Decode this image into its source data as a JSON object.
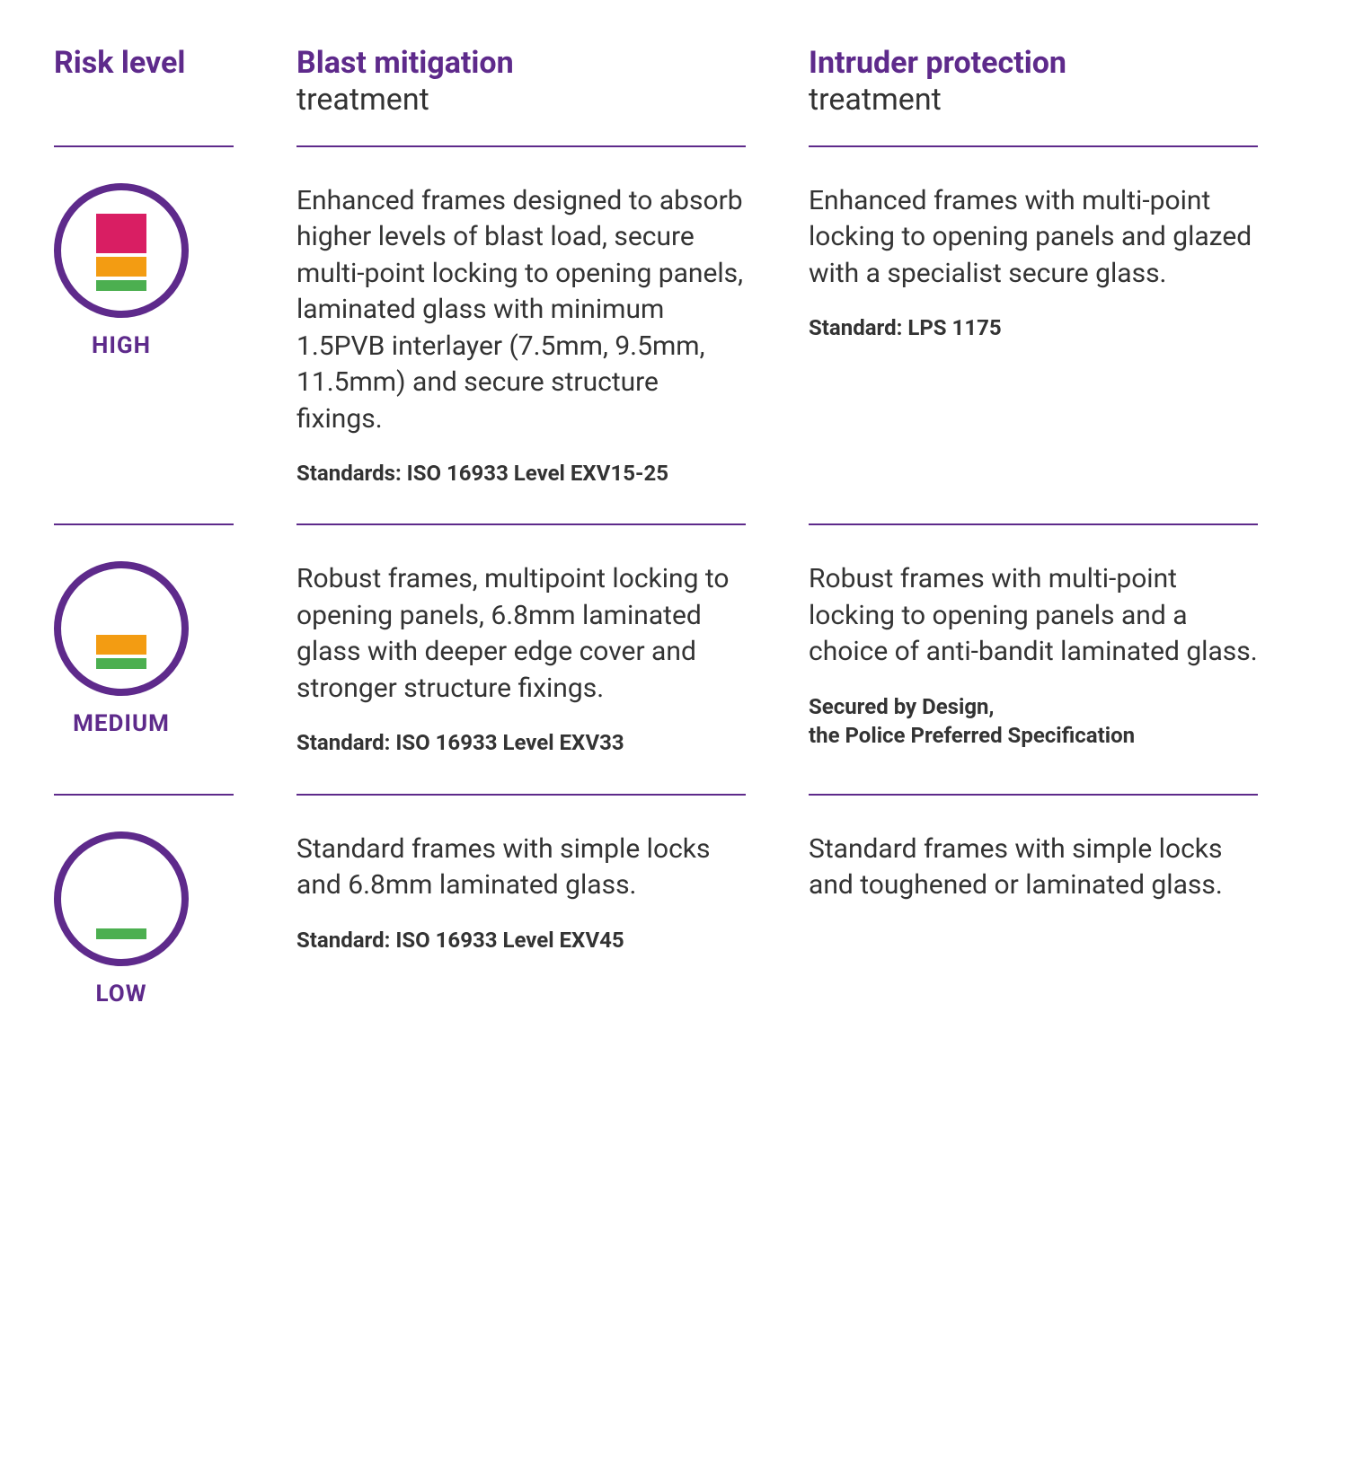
{
  "colors": {
    "purple": "#5e2a8b",
    "text": "#333333",
    "iconBorder": "#5e2a8b",
    "red": "#d91e63",
    "orange": "#f39c12",
    "green": "#4caf50"
  },
  "headers": {
    "risk": "Risk level",
    "blast_title": "Blast mitigation",
    "blast_sub": "treatment",
    "intruder_title": "Intruder protection",
    "intruder_sub": "treatment"
  },
  "rows": [
    {
      "level": "HIGH",
      "bars": [
        "red",
        "orange",
        "green"
      ],
      "blast_text": "Enhanced frames designed to absorb higher levels of blast load, secure multi-point locking to opening panels, laminated glass with minimum 1.5PVB interlayer (7.5mm, 9.5mm, 11.5mm) and secure structure fixings.",
      "blast_standard": "Standards: ISO 16933 Level EXV15-25",
      "intruder_text": "Enhanced frames with multi-point locking to opening panels and glazed with a specialist secure glass.",
      "intruder_standard": "Standard: LPS 1175"
    },
    {
      "level": "MEDIUM",
      "bars": [
        "orange",
        "green"
      ],
      "blast_text": "Robust frames, multipoint locking to opening panels, 6.8mm laminated glass with deeper edge cover and stronger structure fixings.",
      "blast_standard": "Standard: ISO 16933 Level EXV33",
      "intruder_text": "Robust frames with multi-point locking to opening panels and a choice of anti-bandit laminated glass.",
      "intruder_standard": "Secured by Design,\nthe Police Preferred Specification"
    },
    {
      "level": "LOW",
      "bars": [
        "green"
      ],
      "blast_text": "Standard frames with simple locks and 6.8mm laminated glass.",
      "blast_standard": "Standard: ISO 16933 Level EXV45",
      "intruder_text": "Standard frames with simple locks and toughened or laminated glass.",
      "intruder_standard": ""
    }
  ]
}
